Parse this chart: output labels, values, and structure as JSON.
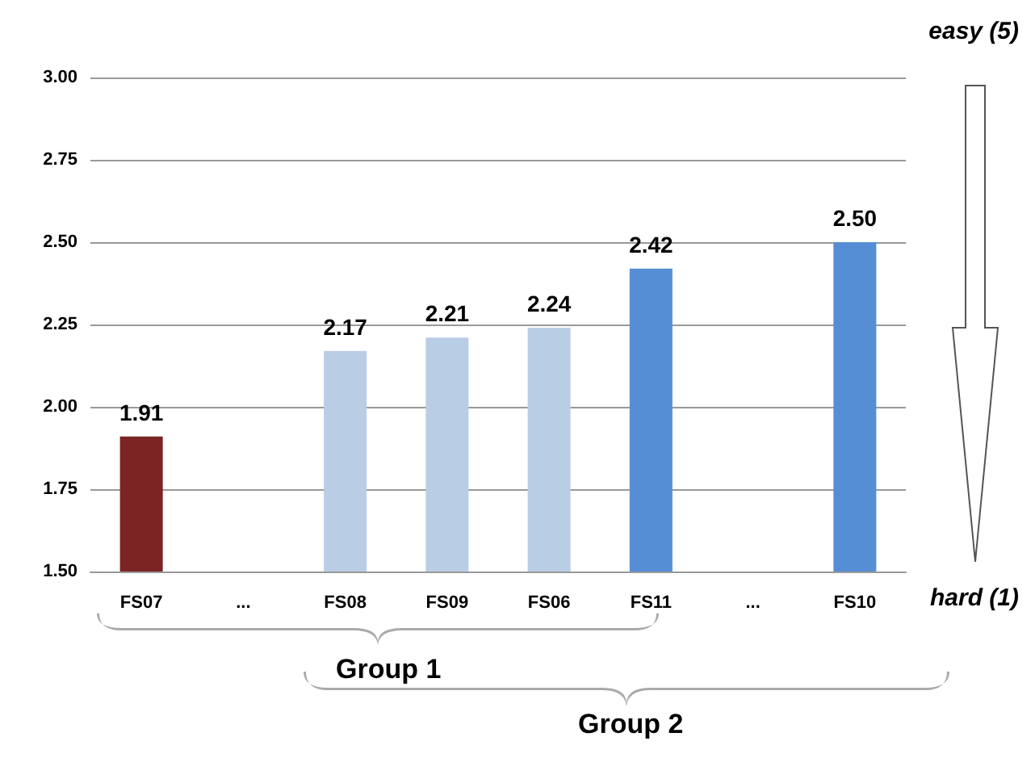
{
  "chart_data": {
    "type": "bar",
    "categories": [
      "FS07",
      "...",
      "FS08",
      "FS09",
      "FS06",
      "FS11",
      "...",
      "FS10"
    ],
    "values": [
      1.91,
      null,
      2.17,
      2.21,
      2.24,
      2.42,
      null,
      2.5
    ],
    "colors": [
      "#7b2423",
      "#b9cde5",
      "#b9cde5",
      "#b9cde5",
      "#b9cde5",
      "#558ed5",
      "#558ed5",
      "#558ed5"
    ],
    "value_labels": [
      "1.91",
      null,
      "2.17",
      "2.21",
      "2.24",
      "2.42",
      null,
      "2.50"
    ],
    "ylim": [
      1.5,
      3.0
    ],
    "yticks": [
      {
        "value": 1.5,
        "label": "1.50"
      },
      {
        "value": 1.75,
        "label": "1.75"
      },
      {
        "value": 2.0,
        "label": "2.00"
      },
      {
        "value": 2.25,
        "label": "2.25"
      },
      {
        "value": 2.5,
        "label": "2.50"
      },
      {
        "value": 2.75,
        "label": "2.75"
      },
      {
        "value": 3.0,
        "label": "3.00"
      }
    ],
    "grid": "y",
    "annotations": [
      "easy (5)",
      "hard (1)",
      "Group 1",
      "Group 2"
    ]
  }
}
